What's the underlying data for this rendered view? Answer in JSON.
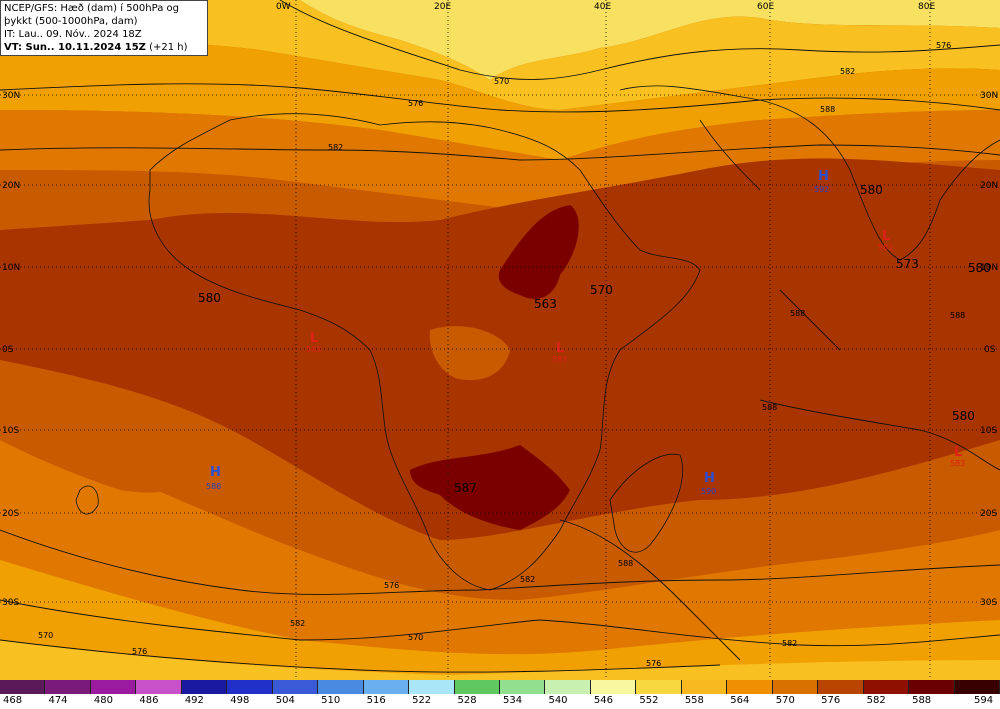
{
  "header": {
    "line1": "NCEP/GFS: Hæð (dam) í 500hPa og",
    "line2": "þykkt (500-1000hPa, dam)",
    "line3": "IT: Lau.. 09. Nóv.. 2024 18Z",
    "line4_prefix": "VT: Sun.. 10.11.2024 15Z",
    "line4_suffix": " (+21 h)"
  },
  "longitude_labels": [
    "0W",
    "20E",
    "40E",
    "60E",
    "80E"
  ],
  "latitude_labels": [
    "30N",
    "20N",
    "10N",
    "0S",
    "10S",
    "20S",
    "30S"
  ],
  "contour_labels": [
    "570",
    "576",
    "582",
    "588",
    "576",
    "582",
    "570",
    "582",
    "576",
    "570",
    "582",
    "588",
    "576",
    "576",
    "582",
    "588",
    "588",
    "588"
  ],
  "field_values": [
    "580",
    "563",
    "570",
    "580",
    "573",
    "580",
    "580",
    "587"
  ],
  "highs": [
    {
      "symbol": "H",
      "value": "592"
    },
    {
      "symbol": "H",
      "value": "588"
    },
    {
      "symbol": "H",
      "value": "590"
    }
  ],
  "lows": [
    {
      "symbol": "L",
      "value": "583"
    },
    {
      "symbol": "L",
      "value": "583"
    },
    {
      "symbol": "L",
      "value": "583"
    },
    {
      "symbol": "L",
      "value": "583"
    }
  ],
  "legend": {
    "ticks": [
      "468",
      "474",
      "480",
      "486",
      "492",
      "498",
      "504",
      "510",
      "516",
      "522",
      "528",
      "534",
      "540",
      "546",
      "552",
      "558",
      "564",
      "570",
      "576",
      "582",
      "588",
      "594"
    ],
    "colors": [
      "#5a1a5a",
      "#7a1a7a",
      "#9a1aa0",
      "#c850c8",
      "#1a1aa0",
      "#2030c8",
      "#3a5ad8",
      "#4a8ae0",
      "#6ab0f0",
      "#a8e6f8",
      "#60c860",
      "#90e090",
      "#c8f0b0",
      "#f8f8a0",
      "#f8d840",
      "#f8b820",
      "#f09000",
      "#d87000",
      "#b84400",
      "#901000",
      "#6a0000",
      "#380000"
    ]
  }
}
